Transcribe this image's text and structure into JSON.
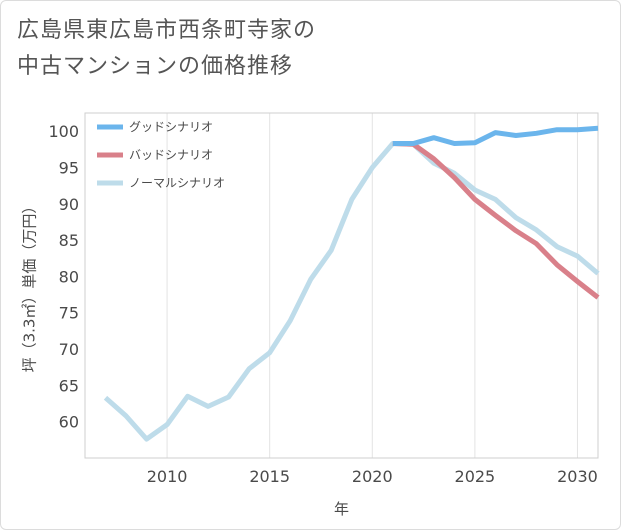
{
  "title_line1": "広島県東広島市西条町寺家の",
  "title_line2": "中古マンションの価格推移",
  "chart_data": {
    "type": "line",
    "xlabel": "年",
    "ylabel": "坪（3.3㎡）単価（万円）",
    "xlim": [
      2006,
      2031
    ],
    "ylim": [
      55,
      102.5
    ],
    "x_ticks": [
      2010,
      2015,
      2020,
      2025,
      2030
    ],
    "y_ticks": [
      60,
      65,
      70,
      75,
      80,
      85,
      90,
      95,
      100
    ],
    "grid": "vertical",
    "legend_position": "top-left",
    "series": [
      {
        "name": "グッドシナリオ",
        "color": "#6bb5ec",
        "x": [
          2021,
          2022,
          2023,
          2024,
          2025,
          2026,
          2027,
          2028,
          2029,
          2030,
          2031
        ],
        "y": [
          98.3,
          98.3,
          99.1,
          98.3,
          98.4,
          99.8,
          99.4,
          99.7,
          100.2,
          100.2,
          100.4
        ]
      },
      {
        "name": "バッドシナリオ",
        "color": "#d9808a",
        "x": [
          2021,
          2022,
          2023,
          2024,
          2025,
          2026,
          2027,
          2028,
          2029,
          2030,
          2031
        ],
        "y": [
          98.3,
          98.2,
          96.2,
          93.6,
          90.6,
          88.4,
          86.3,
          84.5,
          81.6,
          79.3,
          77.1
        ]
      },
      {
        "name": "ノーマルシナリオ",
        "color": "#bedcea",
        "x": [
          2007,
          2008,
          2009,
          2010,
          2011,
          2012,
          2013,
          2014,
          2015,
          2016,
          2017,
          2018,
          2019,
          2020,
          2021,
          2022,
          2023,
          2024,
          2025,
          2026,
          2027,
          2028,
          2029,
          2030,
          2031
        ],
        "y": [
          63.3,
          60.8,
          57.6,
          59.6,
          63.5,
          62.1,
          63.4,
          67.3,
          69.5,
          73.9,
          79.6,
          83.6,
          90.6,
          95.0,
          98.3,
          98.2,
          95.6,
          94.2,
          91.9,
          90.6,
          88.1,
          86.4,
          84.1,
          82.8,
          80.4
        ]
      }
    ]
  }
}
